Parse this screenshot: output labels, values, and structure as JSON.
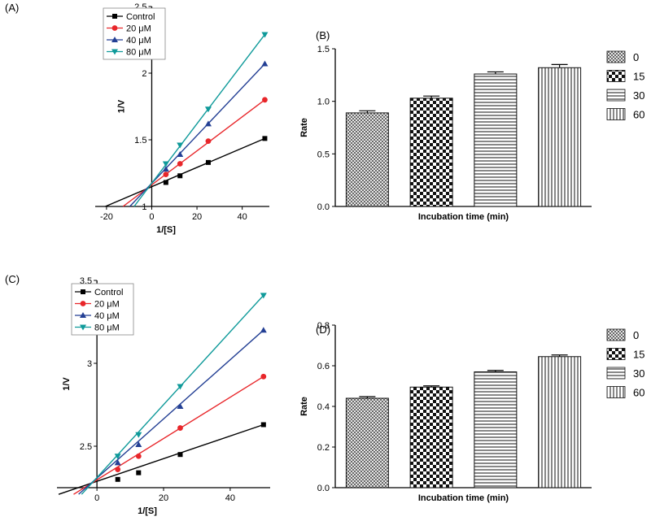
{
  "chart_data": [
    {
      "panel_label": "(A)",
      "type": "line",
      "title": "",
      "xlabel": "1/[S]",
      "ylabel": "1/V",
      "xlim": [
        -25,
        52
      ],
      "ylim": [
        1.0,
        2.5
      ],
      "xticks": [
        -20,
        0,
        20,
        40
      ],
      "yticks": [
        1.0,
        1.5,
        2.0,
        2.5
      ],
      "grid": false,
      "legend_position": "top-left",
      "series": [
        {
          "name": "Control",
          "color": "#000000",
          "marker": "square",
          "points": [
            [
              6.25,
              1.18
            ],
            [
              12.5,
              1.23
            ],
            [
              25,
              1.33
            ],
            [
              50,
              1.51
            ]
          ],
          "line_start": [
            -20.5,
            1.0
          ]
        },
        {
          "name": "20 μM",
          "color": "#e8262a",
          "marker": "circle",
          "points": [
            [
              6.25,
              1.24
            ],
            [
              12.5,
              1.32
            ],
            [
              25,
              1.49
            ],
            [
              50,
              1.8
            ]
          ],
          "line_start": [
            -12.7,
            1.0
          ]
        },
        {
          "name": "40 μM",
          "color": "#233f94",
          "marker": "triangle-up",
          "points": [
            [
              6.25,
              1.28
            ],
            [
              12.5,
              1.39
            ],
            [
              25,
              1.62
            ],
            [
              50,
              2.07
            ]
          ],
          "line_start": [
            -9.7,
            1.0
          ]
        },
        {
          "name": "80 μM",
          "color": "#0f9a9a",
          "marker": "triangle-down",
          "points": [
            [
              6.25,
              1.32
            ],
            [
              12.5,
              1.46
            ],
            [
              25,
              1.73
            ],
            [
              50,
              2.29
            ]
          ],
          "line_start": [
            -7.8,
            1.0
          ]
        }
      ]
    },
    {
      "panel_label": "(B)",
      "type": "bar",
      "title": "",
      "xlabel": "Incubation time (min)",
      "ylabel": "Rate",
      "ylim": [
        0,
        1.5
      ],
      "yticks": [
        0.0,
        0.5,
        1.0,
        1.5
      ],
      "ytick_labels": [
        "0.0",
        "0.5",
        "1.0",
        "1.5"
      ],
      "legend_position": "right",
      "categories": [
        "0",
        "15",
        "30",
        "60"
      ],
      "values": [
        0.89,
        1.03,
        1.26,
        1.32
      ],
      "errors": [
        0.02,
        0.02,
        0.02,
        0.03
      ],
      "patterns": [
        "fine-cross",
        "checker",
        "horizontal",
        "vertical"
      ]
    },
    {
      "panel_label": "(C)",
      "type": "line",
      "title": "",
      "xlabel": "1/[S]",
      "ylabel": "1/V",
      "xlim": [
        -12,
        52
      ],
      "ylim": [
        2.25,
        3.5
      ],
      "xticks": [
        0,
        20,
        40
      ],
      "yticks": [
        2.5,
        3.0,
        3.5
      ],
      "grid": false,
      "legend_position": "top-left",
      "series": [
        {
          "name": "Control",
          "color": "#000000",
          "marker": "square",
          "points": [
            [
              6.25,
              2.3
            ],
            [
              12.5,
              2.34
            ],
            [
              25,
              2.45
            ],
            [
              50,
              2.63
            ]
          ],
          "line_start": [
            -11.5,
            2.21
          ]
        },
        {
          "name": "20 μM",
          "color": "#e8262a",
          "marker": "circle",
          "points": [
            [
              6.25,
              2.36
            ],
            [
              12.5,
              2.44
            ],
            [
              25,
              2.61
            ],
            [
              50,
              2.92
            ]
          ],
          "line_start": [
            -7.0,
            2.21
          ]
        },
        {
          "name": "40 μM",
          "color": "#233f94",
          "marker": "triangle-up",
          "points": [
            [
              6.25,
              2.4
            ],
            [
              12.5,
              2.51
            ],
            [
              25,
              2.74
            ],
            [
              50,
              3.2
            ]
          ],
          "line_start": [
            -5.5,
            2.21
          ]
        },
        {
          "name": "80 μM",
          "color": "#0f9a9a",
          "marker": "triangle-down",
          "points": [
            [
              6.25,
              2.44
            ],
            [
              12.5,
              2.57
            ],
            [
              25,
              2.86
            ],
            [
              50,
              3.41
            ]
          ],
          "line_start": [
            -4.6,
            2.21
          ]
        }
      ]
    },
    {
      "panel_label": "(D)",
      "type": "bar",
      "title": "",
      "xlabel": "Incubation time (min)",
      "ylabel": "Rate",
      "ylim": [
        0,
        0.8
      ],
      "yticks": [
        0.0,
        0.2,
        0.4,
        0.6,
        0.8
      ],
      "ytick_labels": [
        "0.0",
        "0.2",
        "0.4",
        "0.6",
        "0.8"
      ],
      "legend_position": "right",
      "categories": [
        "0",
        "15",
        "30",
        "60"
      ],
      "values": [
        0.44,
        0.495,
        0.57,
        0.645
      ],
      "errors": [
        0.008,
        0.006,
        0.007,
        0.008
      ],
      "patterns": [
        "fine-cross",
        "checker",
        "horizontal",
        "vertical"
      ]
    }
  ]
}
